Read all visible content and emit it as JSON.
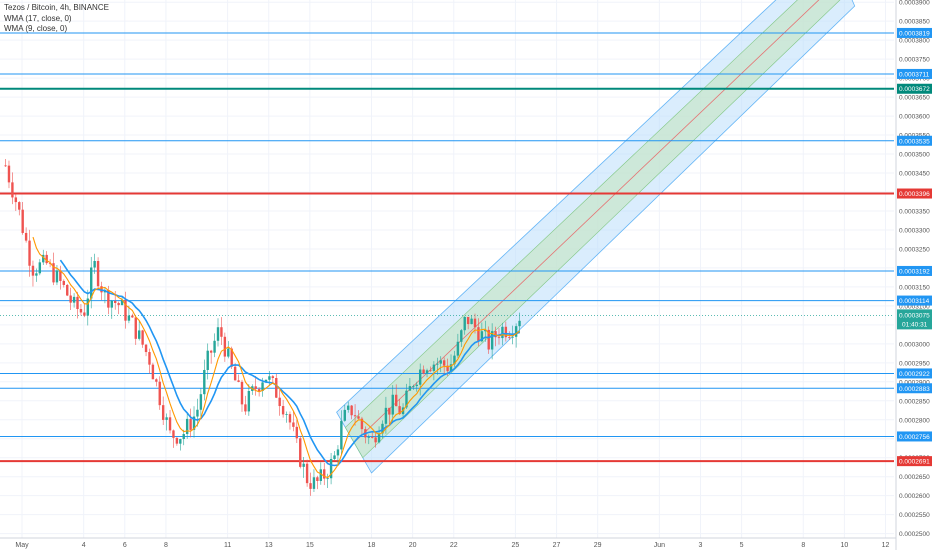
{
  "legend": {
    "title": "Tezos / Bitcoin, 4h, BINANCE",
    "ind1": "WMA (17, close, 0)",
    "ind2": "WMA (9, close, 0)"
  },
  "colors": {
    "up": "#26a69a",
    "down": "#ef5350",
    "wma17": "#2196f3",
    "wma9": "#ff9800",
    "hline_blue": "#2196f3",
    "hline_red": "#e53935",
    "hline_green": "#00897b",
    "channel_outer": "#bbdefb",
    "channel_inner": "#c8e6c9"
  },
  "chart_data": {
    "type": "candlestick",
    "y_axis": {
      "min": 0.00025,
      "max": 0.00039,
      "ticks": [
        "0.0003900",
        "0.0003850",
        "0.0003800",
        "0.0003750",
        "0.0003700",
        "0.0003650",
        "0.0003600",
        "0.0003550",
        "0.0003500",
        "0.0003450",
        "0.0003400",
        "0.0003350",
        "0.0003300",
        "0.0003250",
        "0.0003200",
        "0.0003150",
        "0.0003100",
        "0.0003050",
        "0.0003000",
        "0.0002950",
        "0.0002900",
        "0.0002850",
        "0.0002800",
        "0.0002750",
        "0.0002700",
        "0.0002650",
        "0.0002600",
        "0.0002550",
        "0.0002500"
      ]
    },
    "x_axis": {
      "labels": [
        {
          "label": "May",
          "day": 1
        },
        {
          "label": "4",
          "day": 4
        },
        {
          "label": "6",
          "day": 6
        },
        {
          "label": "8",
          "day": 8
        },
        {
          "label": "11",
          "day": 11
        },
        {
          "label": "13",
          "day": 13
        },
        {
          "label": "15",
          "day": 15
        },
        {
          "label": "18",
          "day": 18
        },
        {
          "label": "20",
          "day": 20
        },
        {
          "label": "22",
          "day": 22
        },
        {
          "label": "25",
          "day": 25
        },
        {
          "label": "27",
          "day": 27
        },
        {
          "label": "29",
          "day": 29
        },
        {
          "label": "Jun",
          "day": 32
        },
        {
          "label": "3",
          "day": 34
        },
        {
          "label": "5",
          "day": 36
        },
        {
          "label": "8",
          "day": 39
        },
        {
          "label": "10",
          "day": 41
        },
        {
          "label": "12",
          "day": 43
        }
      ]
    },
    "horizontal_lines": [
      {
        "price": "0.0003819",
        "color": "blue"
      },
      {
        "price": "0.0003711",
        "color": "blue"
      },
      {
        "price": "0.0003672",
        "color": "green"
      },
      {
        "price": "0.0003535",
        "color": "blue"
      },
      {
        "price": "0.0003396",
        "color": "red"
      },
      {
        "price": "0.0003192",
        "color": "blue"
      },
      {
        "price": "0.0003114",
        "color": "blue"
      },
      {
        "price": "0.0002922",
        "color": "blue"
      },
      {
        "price": "0.0002883",
        "color": "blue"
      },
      {
        "price": "0.0002756",
        "color": "blue"
      },
      {
        "price": "0.0002691",
        "color": "red"
      }
    ],
    "current_price": {
      "price": "0.0003075",
      "countdown": "01:40:31"
    },
    "channel": {
      "lower_start": {
        "day": 18.0,
        "price": 0.000266
      },
      "lower_end": {
        "day": 41.5,
        "price": 0.000389
      },
      "upper_start": {
        "day": 16.3,
        "price": 0.000282
      },
      "upper_end": {
        "day": 40.3,
        "price": 0.000404
      }
    },
    "price_path": [
      [
        0.2,
        0.000347
      ],
      [
        0.8,
        0.000336
      ],
      [
        1.5,
        0.00032
      ],
      [
        2.2,
        0.000321
      ],
      [
        3.0,
        0.000315
      ],
      [
        3.5,
        0.00031
      ],
      [
        4.0,
        0.000308
      ],
      [
        4.5,
        0.000321
      ],
      [
        5.0,
        0.000313
      ],
      [
        5.8,
        0.00031
      ],
      [
        6.5,
        0.000304
      ],
      [
        7.2,
        0.000296
      ],
      [
        7.8,
        0.000284
      ],
      [
        8.2,
        0.000276
      ],
      [
        8.8,
        0.000276
      ],
      [
        9.5,
        0.000282
      ],
      [
        10.0,
        0.000295
      ],
      [
        10.6,
        0.000304
      ],
      [
        11.2,
        0.000293
      ],
      [
        11.8,
        0.000283
      ],
      [
        12.3,
        0.000288
      ],
      [
        12.8,
        0.000292
      ],
      [
        13.3,
        0.000288
      ],
      [
        13.9,
        0.000282
      ],
      [
        14.4,
        0.000272
      ],
      [
        14.9,
        0.000264
      ],
      [
        15.3,
        0.000263
      ],
      [
        15.8,
        0.000266
      ],
      [
        16.2,
        0.00027
      ],
      [
        16.6,
        0.00028
      ],
      [
        17.1,
        0.000283
      ],
      [
        17.5,
        0.000278
      ],
      [
        18.0,
        0.000274
      ],
      [
        18.5,
        0.000281
      ],
      [
        19.0,
        0.000284
      ],
      [
        19.5,
        0.000282
      ],
      [
        20.0,
        0.00029
      ],
      [
        20.6,
        0.000295
      ],
      [
        21.2,
        0.000295
      ],
      [
        21.8,
        0.000294
      ],
      [
        22.2,
        0.000299
      ],
      [
        22.6,
        0.000307
      ],
      [
        23.1,
        0.000304
      ],
      [
        23.7,
        0.0003
      ],
      [
        24.3,
        0.000304
      ],
      [
        24.8,
        0.000304
      ],
      [
        25.2,
        0.0003075
      ]
    ]
  }
}
